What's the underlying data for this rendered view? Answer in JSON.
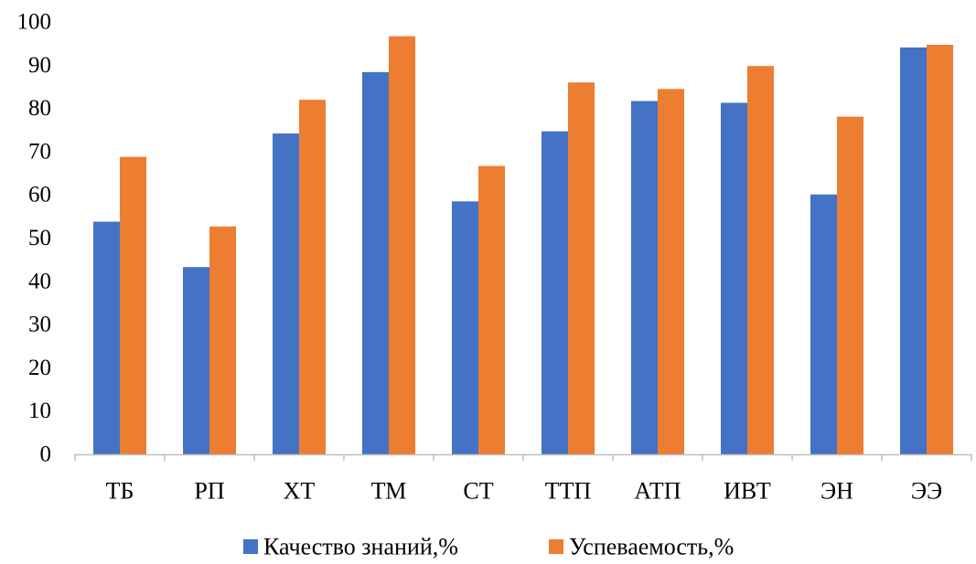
{
  "chart_data": {
    "type": "bar",
    "title": "",
    "xlabel": "",
    "ylabel": "",
    "ylim": [
      0,
      100
    ],
    "yticks": [
      0,
      10,
      20,
      30,
      40,
      50,
      60,
      70,
      80,
      90,
      100
    ],
    "grid": false,
    "legend_position": "bottom",
    "categories": [
      "ТБ",
      "РП",
      "ХТ",
      "ТМ",
      "СТ",
      "ТТП",
      "АТП",
      "ИВТ",
      "ЭН",
      "ЭЭ"
    ],
    "series": [
      {
        "name": "Качество знаний,%",
        "color": "#4472C4",
        "values": [
          53.8,
          43.3,
          74.2,
          88.4,
          58.5,
          74.7,
          81.7,
          81.3,
          60.1,
          94.1
        ]
      },
      {
        "name": "Успеваемость,%",
        "color": "#ED7D31",
        "values": [
          68.8,
          52.7,
          82.0,
          96.7,
          66.7,
          86.0,
          84.5,
          89.8,
          78.1,
          94.7
        ]
      }
    ]
  }
}
